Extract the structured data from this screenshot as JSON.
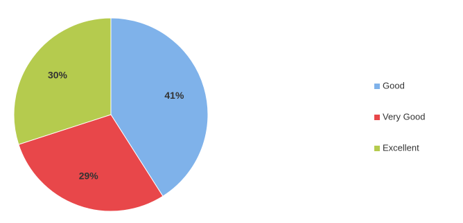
{
  "chart_data": {
    "type": "pie",
    "categories": [
      "Good",
      "Very Good",
      "Excellent"
    ],
    "values": [
      41,
      29,
      30
    ],
    "value_labels": [
      "41%",
      "29%",
      "30%"
    ],
    "colors": [
      "#7fb2ea",
      "#e8474a",
      "#b5cb4e"
    ]
  }
}
